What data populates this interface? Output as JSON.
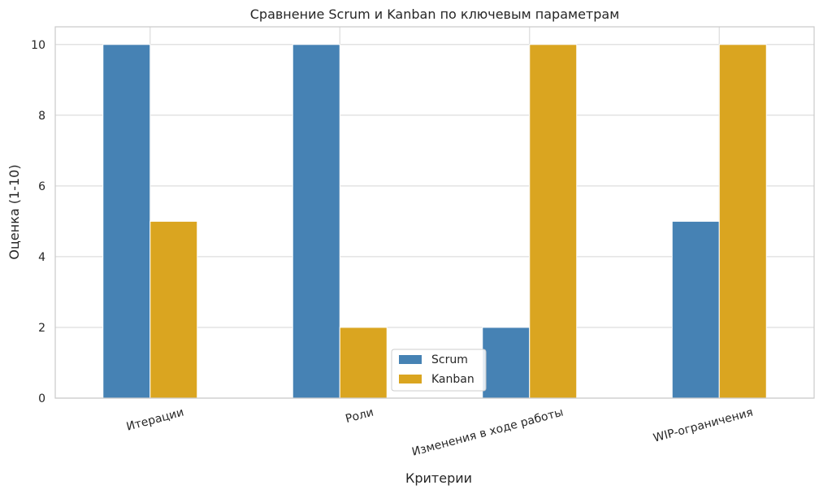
{
  "chart_data": {
    "type": "bar",
    "title": "Сравнение Scrum и Kanban по ключевым параметрам",
    "xlabel": "Критерии",
    "ylabel": "Оценка (1-10)",
    "categories": [
      "Итерации",
      "Роли",
      "Изменения в ходе работы",
      "WIP-ограничения"
    ],
    "series": [
      {
        "name": "Scrum",
        "values": [
          10,
          10,
          2,
          5
        ],
        "color": "#4682B4"
      },
      {
        "name": "Kanban",
        "values": [
          5,
          2,
          10,
          10
        ],
        "color": "#DAA520"
      }
    ],
    "ylim": [
      0,
      10.5
    ],
    "yticks": [
      "0",
      "2",
      "4",
      "6",
      "8",
      "10"
    ],
    "grid": true,
    "legend_position": "lower-center"
  }
}
